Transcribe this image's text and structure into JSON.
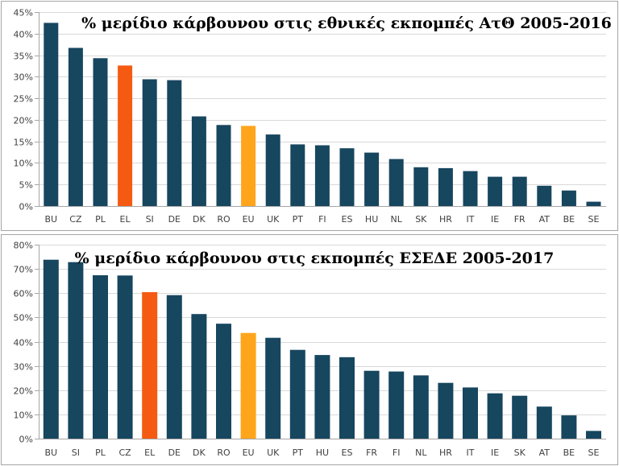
{
  "colors": {
    "default": "#17465f",
    "highlight": "#f55a12",
    "average": "#ffa51c",
    "grid": "#d9d9d9",
    "axis": "#a6a6a6"
  },
  "chart_data": [
    {
      "type": "bar",
      "title": "% μερίδιο κάρβουνου στις εθνικές εκπομπές ΑτΘ 2005-2016",
      "categories": [
        "BU",
        "CZ",
        "PL",
        "EL",
        "SI",
        "DE",
        "DK",
        "RO",
        "EU",
        "UK",
        "PT",
        "FI",
        "ES",
        "HU",
        "NL",
        "SK",
        "HR",
        "IT",
        "IE",
        "FR",
        "AT",
        "BE",
        "SE"
      ],
      "values": [
        42.5,
        36.7,
        34.3,
        32.6,
        29.4,
        29.2,
        20.8,
        18.8,
        18.6,
        16.6,
        14.3,
        14.1,
        13.4,
        12.4,
        10.9,
        9.0,
        8.8,
        8.1,
        6.8,
        6.8,
        4.7,
        3.6,
        1.0
      ],
      "highlight": [
        "EL"
      ],
      "average": [
        "EU"
      ],
      "ylim": [
        0,
        45
      ],
      "yticks": [
        0,
        5,
        10,
        15,
        20,
        25,
        30,
        35,
        40,
        45
      ],
      "ytick_labels": [
        "0%",
        "5%",
        "10%",
        "15%",
        "20%",
        "25%",
        "30%",
        "35%",
        "40%",
        "45%"
      ],
      "grid": true,
      "legend": "none"
    },
    {
      "type": "bar",
      "title": "% μερίδιο κάρβουνου στις εκπομπές ΕΣΕΔΕ 2005-2017",
      "categories": [
        "BU",
        "SI",
        "PL",
        "CZ",
        "EL",
        "DE",
        "DK",
        "RO",
        "EU",
        "UK",
        "PT",
        "HU",
        "ES",
        "FR",
        "FI",
        "NL",
        "HR",
        "IT",
        "IE",
        "SK",
        "AT",
        "BE",
        "SE"
      ],
      "values": [
        73.8,
        72.8,
        67.4,
        67.3,
        60.4,
        59.2,
        51.4,
        47.4,
        43.6,
        41.6,
        36.6,
        34.5,
        33.6,
        28.0,
        27.7,
        26.1,
        23.0,
        21.1,
        18.7,
        17.7,
        13.2,
        9.6,
        3.2
      ],
      "highlight": [
        "EL"
      ],
      "average": [
        "EU"
      ],
      "ylim": [
        0,
        80
      ],
      "yticks": [
        0,
        10,
        20,
        30,
        40,
        50,
        60,
        70,
        80
      ],
      "ytick_labels": [
        "0%",
        "10%",
        "20%",
        "30%",
        "40%",
        "50%",
        "60%",
        "70%",
        "80%"
      ],
      "grid": true,
      "legend": "none"
    }
  ]
}
